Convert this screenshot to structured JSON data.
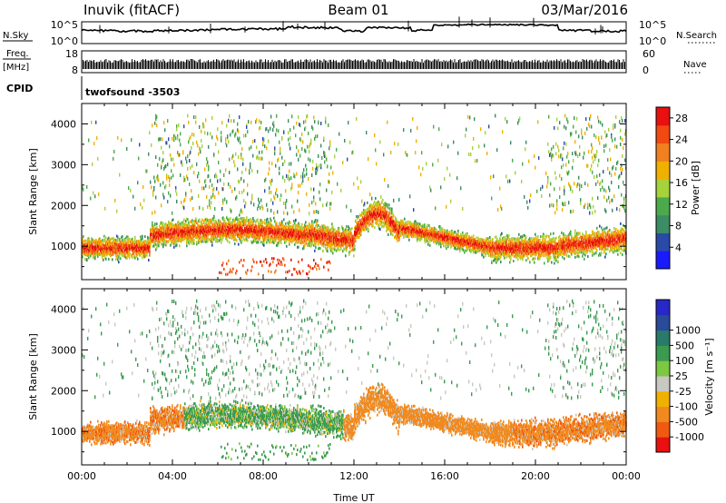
{
  "header": {
    "station": "Inuvik (fitACF)",
    "beam": "Beam 01",
    "date": "03/Mar/2016"
  },
  "top_panels": {
    "nsky_label": "N.Sky",
    "nsky_ticks": [
      "10^5",
      "10^0"
    ],
    "nsearch_label": "N.Search",
    "nsearch_ticks": [
      "10^5",
      "10^0"
    ],
    "freq_label": "Freq.",
    "freq_unit": "[MHz]",
    "freq_ticks": [
      "18",
      "8"
    ],
    "nave_label": "Nave",
    "nave_ticks": [
      "60",
      "0"
    ],
    "cpid_label": "CPID",
    "cpid_value": "twofsound -3503"
  },
  "colors": {
    "power": [
      "#1a1aff",
      "#2a4aa8",
      "#3c8c64",
      "#4caa4c",
      "#a6d23c",
      "#f0b000",
      "#f08020",
      "#f04a10",
      "#e81010"
    ],
    "velocity": [
      "#e81010",
      "#f05a10",
      "#f08a20",
      "#f0b000",
      "#c8c8c0",
      "#7cc840",
      "#3a9a50",
      "#2a7a6a",
      "#2a4a9a",
      "#2828c8"
    ]
  },
  "chart_data": [
    {
      "type": "heatmap",
      "name": "power",
      "xlabel": "",
      "ylabel": "Slant Range [km]",
      "xlim": [
        0,
        24
      ],
      "ylim": [
        180,
        4500
      ],
      "xticks": [
        "00:00",
        "04:00",
        "08:00",
        "12:00",
        "16:00",
        "20:00",
        "00:00"
      ],
      "yticks": [
        1000,
        2000,
        3000,
        4000
      ],
      "colorbar": {
        "label": "Power [dB]",
        "ticks": [
          4,
          8,
          12,
          16,
          20,
          24,
          28
        ],
        "range": [
          0,
          30
        ]
      }
    },
    {
      "type": "heatmap",
      "name": "velocity",
      "xlabel": "Time UT",
      "ylabel": "Slant Range [km]",
      "xlim": [
        0,
        24
      ],
      "ylim": [
        180,
        4500
      ],
      "xticks": [
        "00:00",
        "04:00",
        "08:00",
        "12:00",
        "16:00",
        "20:00",
        "00:00"
      ],
      "yticks": [
        1000,
        2000,
        3000,
        4000
      ],
      "colorbar": {
        "label": "Velocity [m s⁻¹]",
        "ticks": [
          "-1000",
          "-500",
          "-100",
          "-25",
          "25",
          "100",
          "500",
          "1000"
        ]
      }
    }
  ]
}
